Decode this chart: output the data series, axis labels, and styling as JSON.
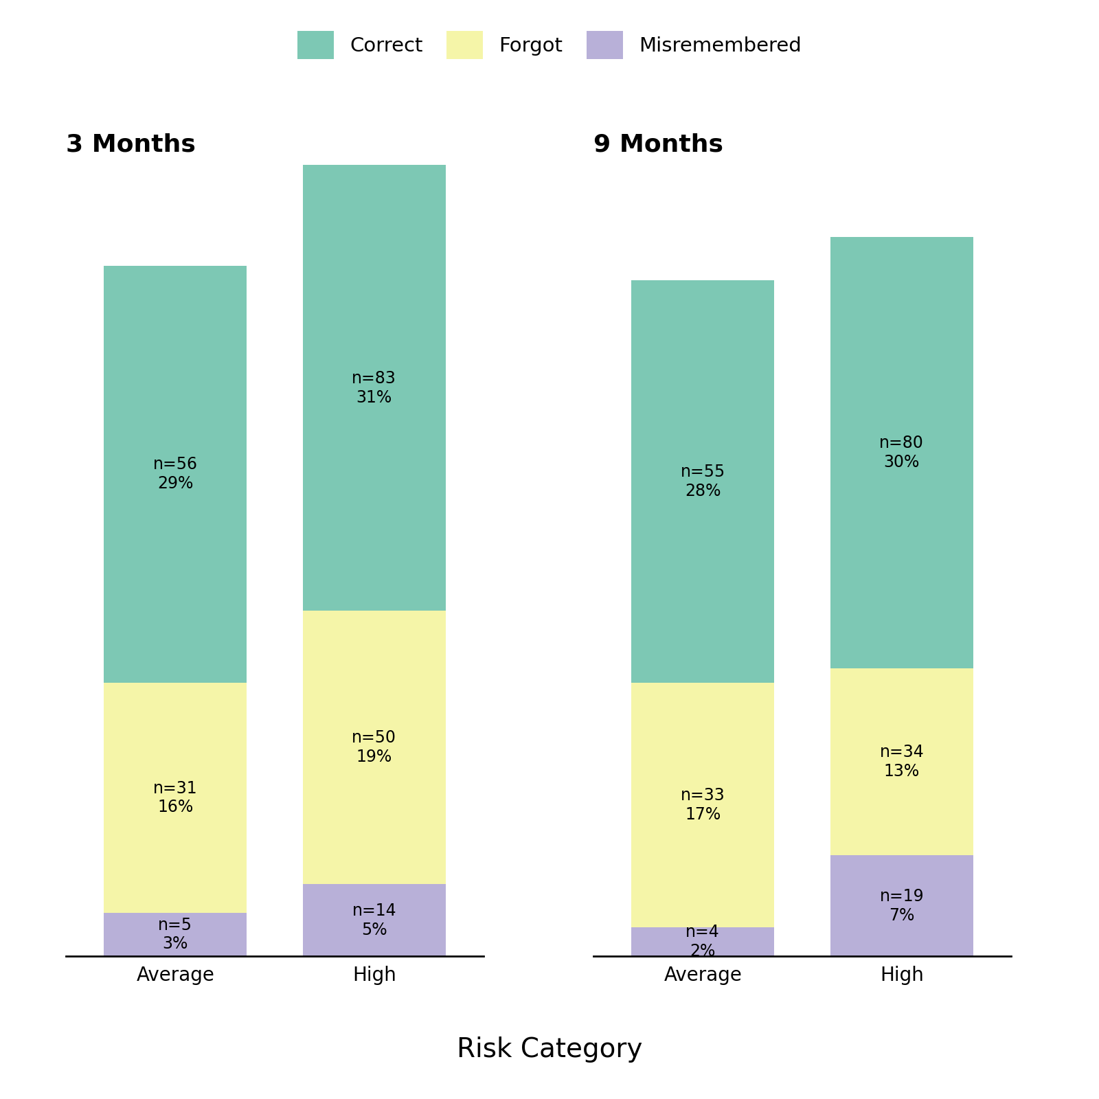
{
  "title_3m": "3 Months",
  "title_9m": "9 Months",
  "xlabel": "Risk Category",
  "categories": [
    "Average",
    "High"
  ],
  "colors": {
    "correct": "#7DC8B4",
    "forgot": "#F5F5A8",
    "misremembered": "#B8B0D8"
  },
  "legend_labels": [
    "Correct",
    "Forgot",
    "Misremembered"
  ],
  "data_3m": {
    "Average": {
      "misremembered": {
        "n": 5,
        "pct": 3
      },
      "forgot": {
        "n": 31,
        "pct": 16
      },
      "correct": {
        "n": 56,
        "pct": 29
      }
    },
    "High": {
      "misremembered": {
        "n": 14,
        "pct": 5
      },
      "forgot": {
        "n": 50,
        "pct": 19
      },
      "correct": {
        "n": 83,
        "pct": 31
      }
    }
  },
  "data_9m": {
    "Average": {
      "misremembered": {
        "n": 4,
        "pct": 2
      },
      "forgot": {
        "n": 33,
        "pct": 17
      },
      "correct": {
        "n": 55,
        "pct": 28
      }
    },
    "High": {
      "misremembered": {
        "n": 19,
        "pct": 7
      },
      "forgot": {
        "n": 34,
        "pct": 13
      },
      "correct": {
        "n": 80,
        "pct": 30
      }
    }
  },
  "background_color": "#FFFFFF",
  "text_fontsize": 17,
  "label_fontsize": 20,
  "title_fontsize": 26,
  "legend_fontsize": 21,
  "bar_width": 0.72,
  "ylim": 55
}
